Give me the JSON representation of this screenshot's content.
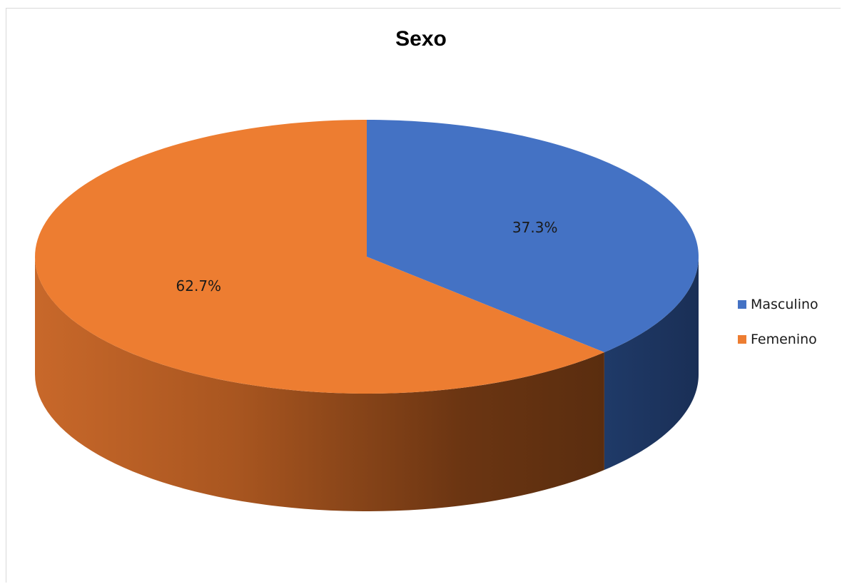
{
  "chart_data": {
    "type": "pie",
    "title": "Sexo",
    "categories": [
      "Masculino",
      "Femenino"
    ],
    "values": [
      37.3,
      62.7
    ],
    "labels": [
      "37.3%",
      "62.7%"
    ],
    "colors": [
      "#4472C4",
      "#ED7D31"
    ],
    "legend_position": "right",
    "style": "3d"
  }
}
